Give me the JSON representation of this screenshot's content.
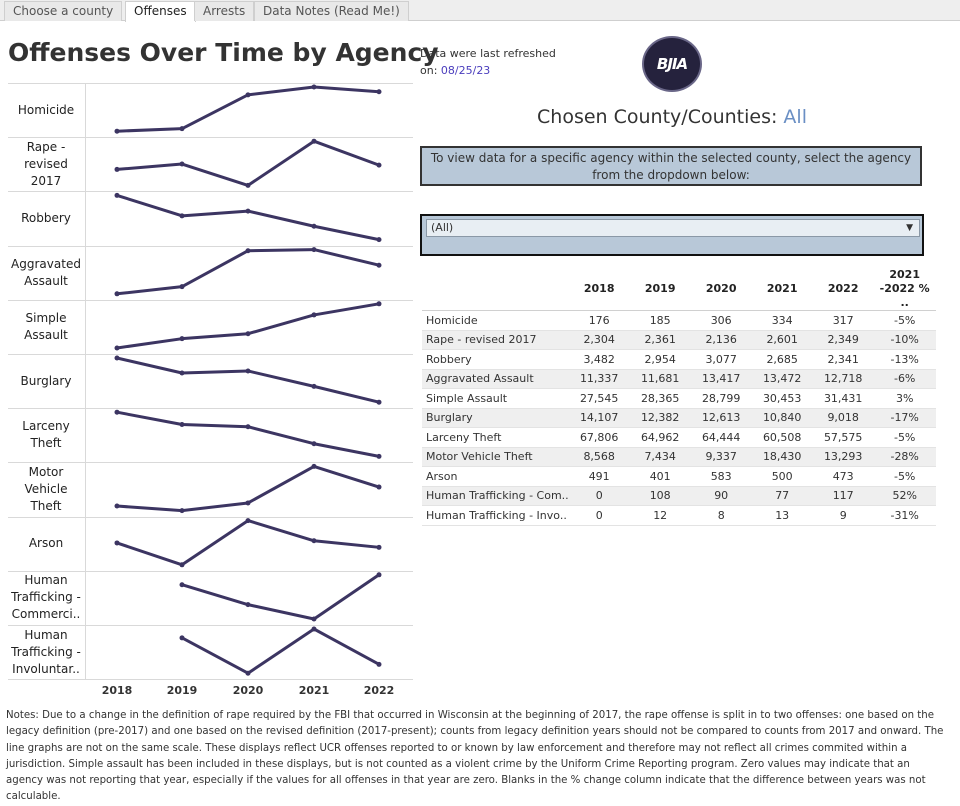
{
  "tabs": [
    "Choose a county",
    "Offenses",
    "Arrests",
    "Data Notes (Read Me!)"
  ],
  "title": "Offenses Over Time by Agency",
  "refresh": {
    "line1": "Data were last refreshed",
    "prefix": "on: ",
    "date": "08/25/23"
  },
  "logo_text": "BJIA",
  "county": {
    "label": "Chosen County/Counties: ",
    "value": "All"
  },
  "instructions": "To view data for a specific agency within the selected county, select the agency from the dropdown below:",
  "dropdown": {
    "value": "(All)",
    "caret": "▼"
  },
  "years": [
    "2018",
    "2019",
    "2020",
    "2021",
    "2022"
  ],
  "chart_rows": [
    {
      "label": "Homicide",
      "values": [
        176,
        185,
        306,
        334,
        317
      ]
    },
    {
      "label": "Rape - revised 2017",
      "values": [
        2304,
        2361,
        2136,
        2601,
        2349
      ]
    },
    {
      "label": "Robbery",
      "values": [
        3482,
        2954,
        3077,
        2685,
        2341
      ]
    },
    {
      "label": "Aggravated Assault",
      "values": [
        11337,
        11681,
        13417,
        13472,
        12718
      ]
    },
    {
      "label": "Simple Assault",
      "values": [
        27545,
        28365,
        28799,
        30453,
        31431
      ]
    },
    {
      "label": "Burglary",
      "values": [
        14107,
        12382,
        12613,
        10840,
        9018
      ]
    },
    {
      "label": "Larceny Theft",
      "values": [
        67806,
        64962,
        64444,
        60508,
        57575
      ]
    },
    {
      "label": "Motor Vehicle Theft",
      "values": [
        8568,
        7434,
        9337,
        18430,
        13293
      ]
    },
    {
      "label": "Arson",
      "values": [
        491,
        401,
        583,
        500,
        473
      ]
    },
    {
      "label": "Human Trafficking - Commerci..",
      "values": [
        null,
        108,
        90,
        77,
        117
      ]
    },
    {
      "label": "Human Trafficking - Involuntar..",
      "values": [
        null,
        12,
        8,
        13,
        9
      ]
    }
  ],
  "table": {
    "headers": [
      "",
      "2018",
      "2019",
      "2020",
      "2021",
      "2022",
      "2021 -2022 % .."
    ],
    "rows": [
      [
        "Homicide",
        "176",
        "185",
        "306",
        "334",
        "317",
        "-5%"
      ],
      [
        "Rape - revised 2017",
        "2,304",
        "2,361",
        "2,136",
        "2,601",
        "2,349",
        "-10%"
      ],
      [
        "Robbery",
        "3,482",
        "2,954",
        "3,077",
        "2,685",
        "2,341",
        "-13%"
      ],
      [
        "Aggravated Assault",
        "11,337",
        "11,681",
        "13,417",
        "13,472",
        "12,718",
        "-6%"
      ],
      [
        "Simple Assault",
        "27,545",
        "28,365",
        "28,799",
        "30,453",
        "31,431",
        "3%"
      ],
      [
        "Burglary",
        "14,107",
        "12,382",
        "12,613",
        "10,840",
        "9,018",
        "-17%"
      ],
      [
        "Larceny Theft",
        "67,806",
        "64,962",
        "64,444",
        "60,508",
        "57,575",
        "-5%"
      ],
      [
        "Motor Vehicle Theft",
        "8,568",
        "7,434",
        "9,337",
        "18,430",
        "13,293",
        "-28%"
      ],
      [
        "Arson",
        "491",
        "401",
        "583",
        "500",
        "473",
        "-5%"
      ],
      [
        "Human Trafficking - Com..",
        "0",
        "108",
        "90",
        "77",
        "117",
        "52%"
      ],
      [
        "Human Trafficking - Invo..",
        "0",
        "12",
        "8",
        "13",
        "9",
        "-31%"
      ]
    ]
  },
  "notes": "Notes: Due to a change in the definition of  rape required by the FBI that occurred in Wisconsin at the beginning of 2017, the rape offense is split in to two offenses: one based on the legacy definition (pre-2017) and one based on the revised definition (2017-present); counts from legacy definition years should not be compared to counts from 2017 and onward. The line graphs are not on the same scale. These displays reflect UCR offenses reported to or known by law enforcement and therefore may not reflect all crimes commited within a jurisdiction. Simple assault has been included in these displays, but is not counted as a violent crime by the Uniform Crime Reporting program. Zero values may indicate that an agency was not reporting that year, especially if the values for all offenses in that year are zero. Blanks in the % change column indicate that the difference between years was not calculable.",
  "colors": {
    "line": "#3c3562",
    "accent": "#4a3dbd",
    "panel": "#b8c8d8"
  },
  "chart_data": {
    "type": "line",
    "categories": [
      "2018",
      "2019",
      "2020",
      "2021",
      "2022"
    ],
    "series": [
      {
        "name": "Homicide",
        "values": [
          176,
          185,
          306,
          334,
          317
        ]
      },
      {
        "name": "Rape - revised 2017",
        "values": [
          2304,
          2361,
          2136,
          2601,
          2349
        ]
      },
      {
        "name": "Robbery",
        "values": [
          3482,
          2954,
          3077,
          2685,
          2341
        ]
      },
      {
        "name": "Aggravated Assault",
        "values": [
          11337,
          11681,
          13417,
          13472,
          12718
        ]
      },
      {
        "name": "Simple Assault",
        "values": [
          27545,
          28365,
          28799,
          30453,
          31431
        ]
      },
      {
        "name": "Burglary",
        "values": [
          14107,
          12382,
          12613,
          10840,
          9018
        ]
      },
      {
        "name": "Larceny Theft",
        "values": [
          67806,
          64962,
          64444,
          60508,
          57575
        ]
      },
      {
        "name": "Motor Vehicle Theft",
        "values": [
          8568,
          7434,
          9337,
          18430,
          13293
        ]
      },
      {
        "name": "Arson",
        "values": [
          491,
          401,
          583,
          500,
          473
        ]
      },
      {
        "name": "Human Trafficking - Commerci..",
        "values": [
          null,
          108,
          90,
          77,
          117
        ]
      },
      {
        "name": "Human Trafficking - Involuntar..",
        "values": [
          null,
          12,
          8,
          13,
          9
        ]
      }
    ],
    "title": "Offenses Over Time by Agency",
    "grid": false
  }
}
